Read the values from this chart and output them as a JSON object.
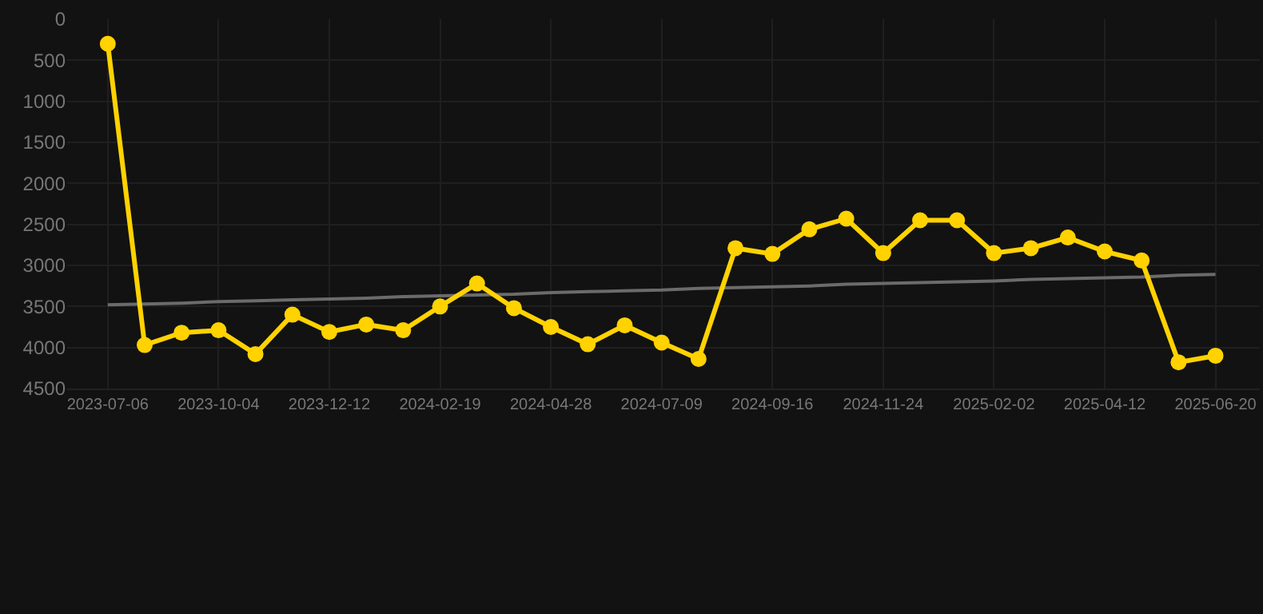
{
  "chart_data": {
    "type": "line",
    "categories": [
      "2023-07-06",
      null,
      null,
      "2023-10-04",
      null,
      null,
      "2023-12-12",
      null,
      null,
      "2024-02-19",
      null,
      null,
      "2024-04-28",
      null,
      null,
      "2024-07-09",
      null,
      null,
      "2024-09-16",
      null,
      null,
      "2024-11-24",
      null,
      null,
      "2025-02-02",
      null,
      null,
      "2025-04-12",
      null,
      null,
      "2025-06-20"
    ],
    "series": [
      {
        "color": "#ffd200",
        "values": [
          300,
          3970,
          3820,
          3790,
          4080,
          3600,
          3810,
          3720,
          3790,
          3500,
          3220,
          3520,
          3750,
          3960,
          3730,
          3940,
          4140,
          2790,
          2860,
          2560,
          2430,
          2850,
          2450,
          2450,
          2850,
          2790,
          2660,
          2830,
          2940,
          4180,
          4100
        ]
      },
      {
        "type": "line",
        "color": "#6b6b6b",
        "marker": "none",
        "values": [
          3480,
          3470,
          3460,
          3440,
          3430,
          3420,
          3410,
          3400,
          3380,
          3370,
          3360,
          3350,
          3330,
          3320,
          3310,
          3300,
          3280,
          3270,
          3260,
          3250,
          3230,
          3220,
          3210,
          3200,
          3190,
          3170,
          3160,
          3150,
          3140,
          3120,
          3110
        ]
      }
    ],
    "ylim": [
      4500,
      0
    ],
    "yticks": [
      0,
      500,
      1000,
      1500,
      2000,
      2500,
      3000,
      3500,
      4000,
      4500
    ],
    "grid": true,
    "marker": "circle",
    "line_style": "solid"
  }
}
